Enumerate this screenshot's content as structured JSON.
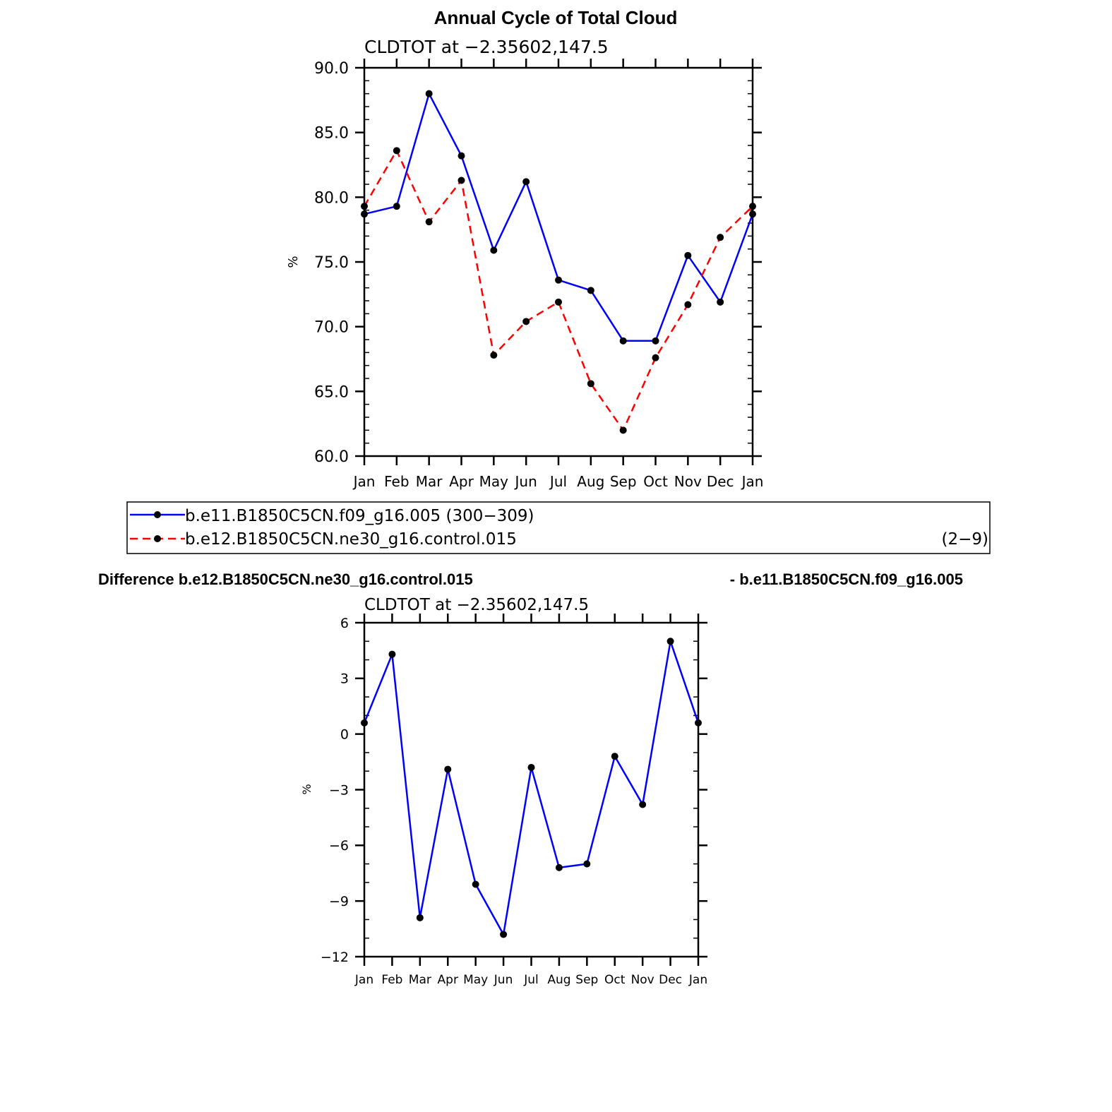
{
  "main_title": "Annual Cycle of Total Cloud",
  "chart_data": [
    {
      "type": "line",
      "subtitle": "CLDTOT at −2.35602,147.5",
      "ylabel": "%",
      "xlabel": "",
      "ylim": [
        60,
        90
      ],
      "y_ticks": [
        "60.0",
        "65.0",
        "70.0",
        "75.0",
        "80.0",
        "85.0",
        "90.0"
      ],
      "categories": [
        "Jan",
        "Feb",
        "Mar",
        "Apr",
        "May",
        "Jun",
        "Jul",
        "Aug",
        "Sep",
        "Oct",
        "Nov",
        "Dec",
        "Jan"
      ],
      "series": [
        {
          "name": "b.e11.B1850C5CN.f09_g16.005 (300−309)",
          "color": "#0000ff",
          "dash": "solid",
          "values": [
            78.7,
            79.3,
            88.0,
            83.2,
            75.9,
            81.2,
            73.6,
            72.8,
            68.9,
            68.9,
            75.5,
            71.9,
            78.7
          ]
        },
        {
          "name": "b.e12.B1850C5CN.ne30_g16.control.015",
          "color": "#ff0000",
          "dash": "dashed",
          "values": [
            79.3,
            83.6,
            78.1,
            81.3,
            67.8,
            70.4,
            71.9,
            65.6,
            62.0,
            67.6,
            71.7,
            76.9,
            79.3
          ]
        }
      ],
      "legend_extra": "(2−9)",
      "legend_position": "below"
    },
    {
      "type": "line",
      "title_left": "Difference b.e12.B1850C5CN.ne30_g16.control.015",
      "title_right": "- b.e11.B1850C5CN.f09_g16.005",
      "subtitle": "CLDTOT at −2.35602,147.5",
      "ylabel": "%",
      "xlabel": "",
      "ylim": [
        -12,
        6
      ],
      "y_ticks": [
        "−12",
        "−9",
        "−6",
        "−3",
        "0",
        "3",
        "6"
      ],
      "categories": [
        "Jan",
        "Feb",
        "Mar",
        "Apr",
        "May",
        "Jun",
        "Jul",
        "Aug",
        "Sep",
        "Oct",
        "Nov",
        "Dec",
        "Jan"
      ],
      "series": [
        {
          "color": "#0000ff",
          "dash": "solid",
          "values": [
            0.6,
            4.3,
            -9.9,
            -1.9,
            -8.1,
            -10.8,
            -1.8,
            -7.2,
            -7.0,
            -1.2,
            -3.8,
            5.0,
            0.6
          ]
        }
      ]
    }
  ]
}
